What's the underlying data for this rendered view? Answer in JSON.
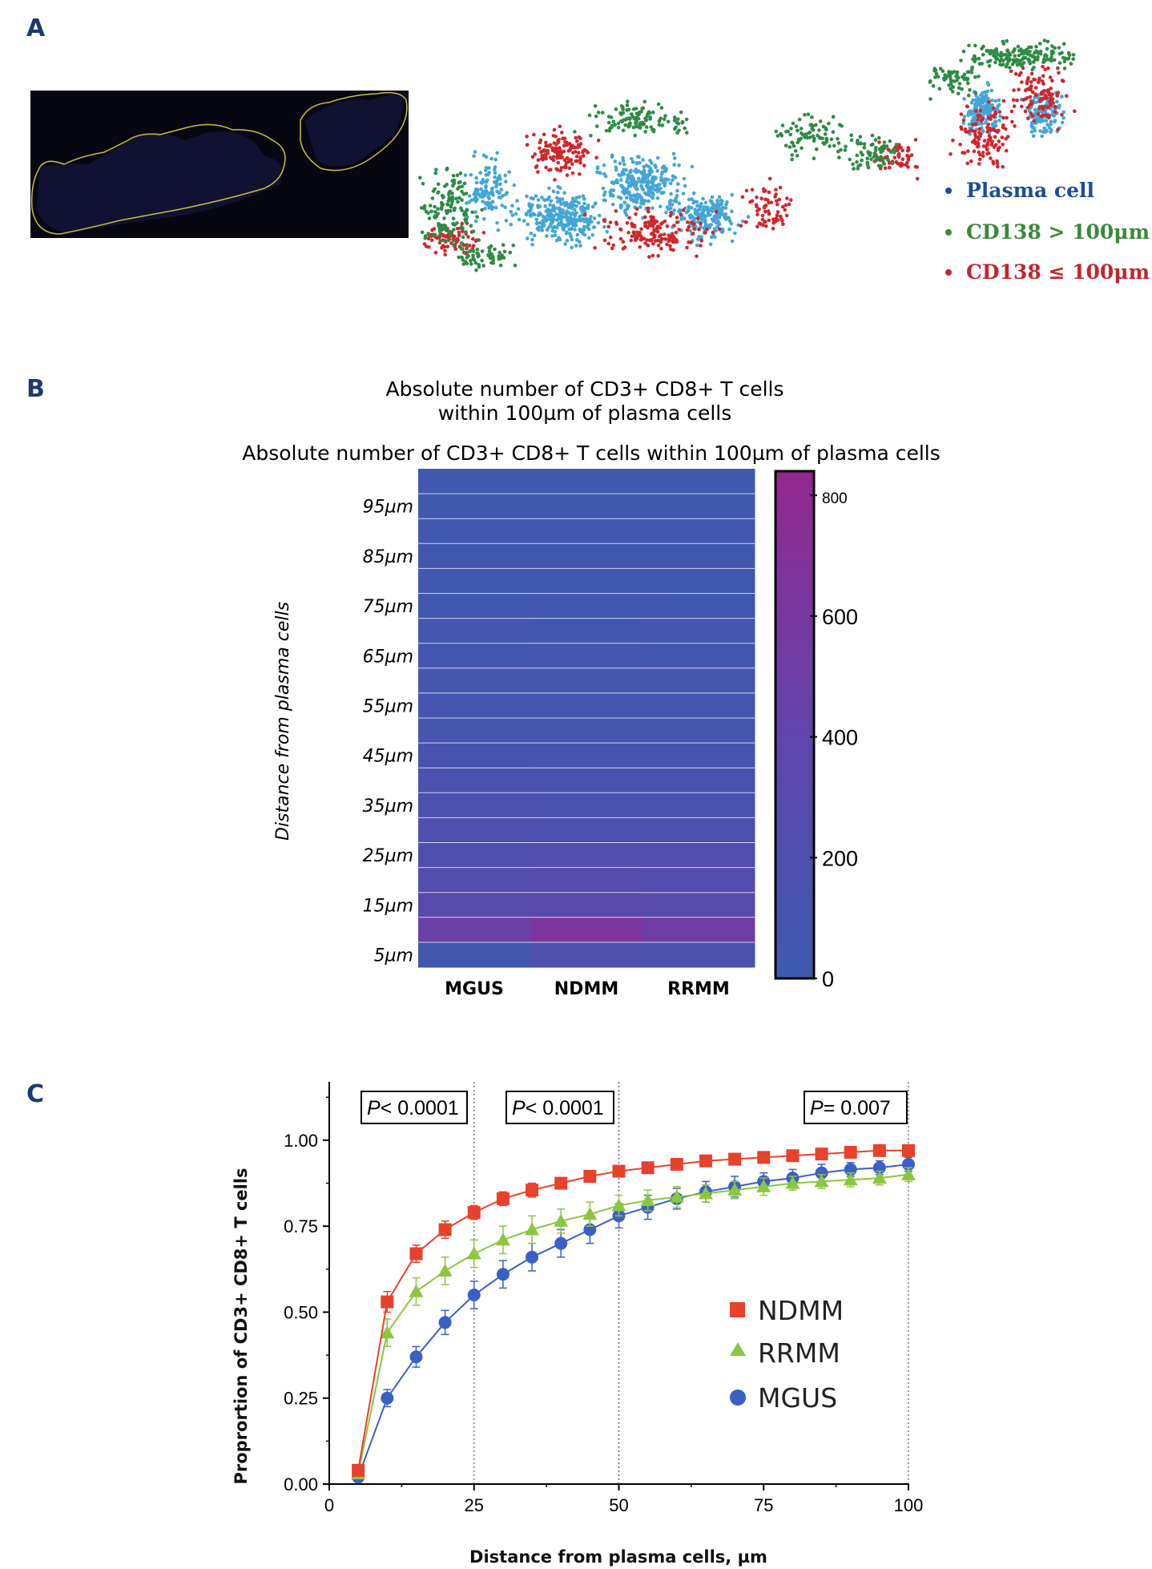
{
  "panels": {
    "a": "A",
    "b": "B",
    "c": "C"
  },
  "panel_a": {
    "legend": [
      {
        "label": "Plasma cell",
        "color": "#1e4d96"
      },
      {
        "label": "CD138 > 100μm",
        "color": "#3a8a3a"
      },
      {
        "label": "CD138 ≤ 100μm",
        "color": "#c0272d"
      }
    ],
    "dot_colors": {
      "plasma": "#43a6d6",
      "far": "#2e8b45",
      "near": "#d0272d"
    }
  },
  "chart_data": [
    {
      "type": "heatmap",
      "title_line1": "Absolute number of CD3+ CD8+ T cells",
      "title_line2": "within 100µm of plasma cells",
      "subtitle": "Absolute number of CD3+ CD8+ T cells within 100µm of plasma cells",
      "ylabel": "Distance from plasma cells",
      "columns": [
        "MGUS",
        "NDMM",
        "RRMM"
      ],
      "row_labels_shown": [
        "95µm",
        "85µm",
        "75µm",
        "65µm",
        "55µm",
        "45µm",
        "35µm",
        "25µm",
        "15µm",
        "5µm"
      ],
      "rows": [
        "100µm",
        "95µm",
        "90µm",
        "85µm",
        "80µm",
        "75µm",
        "70µm",
        "65µm",
        "60µm",
        "55µm",
        "50µm",
        "45µm",
        "40µm",
        "35µm",
        "30µm",
        "25µm",
        "20µm",
        "15µm",
        "10µm",
        "5µm"
      ],
      "values": [
        [
          40,
          40,
          40
        ],
        [
          40,
          40,
          40
        ],
        [
          45,
          45,
          45
        ],
        [
          50,
          50,
          50
        ],
        [
          55,
          60,
          55
        ],
        [
          60,
          65,
          60
        ],
        [
          65,
          70,
          65
        ],
        [
          70,
          75,
          70
        ],
        [
          80,
          85,
          80
        ],
        [
          90,
          95,
          90
        ],
        [
          100,
          105,
          100
        ],
        [
          130,
          120,
          120
        ],
        [
          150,
          140,
          140
        ],
        [
          170,
          150,
          160
        ],
        [
          200,
          180,
          190
        ],
        [
          220,
          230,
          220
        ],
        [
          250,
          270,
          260
        ],
        [
          300,
          320,
          310
        ],
        [
          480,
          640,
          520
        ],
        [
          60,
          180,
          140
        ]
      ],
      "colorbar": {
        "min": 0,
        "max": 840,
        "ticks": [
          0,
          200,
          400,
          600,
          800
        ]
      }
    },
    {
      "type": "line",
      "xlabel": "Distance from plasma cells, µm",
      "ylabel": "Proprortion of CD3+ CD8+ T cells",
      "xlim": [
        0,
        100
      ],
      "ylim": [
        0,
        1.17
      ],
      "xticks": [
        0,
        25,
        50,
        75,
        100
      ],
      "yticks": [
        0,
        0.25,
        0.5,
        0.75,
        1.0
      ],
      "ytick_labels": [
        "0.00",
        "0.25",
        "0.50",
        "0.75",
        "1.00"
      ],
      "x": [
        5,
        10,
        15,
        20,
        25,
        30,
        35,
        40,
        45,
        50,
        55,
        60,
        65,
        70,
        75,
        80,
        85,
        90,
        95,
        100
      ],
      "series": [
        {
          "name": "NDMM",
          "color": "#e8412c",
          "marker": "square",
          "values": [
            0.04,
            0.53,
            0.67,
            0.74,
            0.79,
            0.83,
            0.855,
            0.875,
            0.895,
            0.91,
            0.92,
            0.93,
            0.94,
            0.945,
            0.95,
            0.955,
            0.96,
            0.965,
            0.97,
            0.97
          ],
          "errors": [
            0.01,
            0.03,
            0.025,
            0.025,
            0.02,
            0.02,
            0.02,
            0.015,
            0.015,
            0.015,
            0.015,
            0.012,
            0.012,
            0.012,
            0.01,
            0.01,
            0.01,
            0.01,
            0.01,
            0.01
          ]
        },
        {
          "name": "RRMM",
          "color": "#8cc63f",
          "marker": "triangle",
          "values": [
            0.03,
            0.44,
            0.56,
            0.62,
            0.67,
            0.71,
            0.74,
            0.765,
            0.785,
            0.81,
            0.825,
            0.835,
            0.845,
            0.855,
            0.865,
            0.875,
            0.88,
            0.885,
            0.89,
            0.9
          ],
          "errors": [
            0.01,
            0.04,
            0.04,
            0.04,
            0.04,
            0.04,
            0.04,
            0.035,
            0.035,
            0.03,
            0.03,
            0.03,
            0.025,
            0.025,
            0.025,
            0.02,
            0.02,
            0.02,
            0.02,
            0.02
          ]
        },
        {
          "name": "MGUS",
          "color": "#3b5fc4",
          "marker": "circle",
          "values": [
            0.02,
            0.25,
            0.37,
            0.47,
            0.55,
            0.61,
            0.66,
            0.7,
            0.74,
            0.78,
            0.805,
            0.83,
            0.85,
            0.865,
            0.88,
            0.89,
            0.905,
            0.915,
            0.92,
            0.93
          ],
          "errors": [
            0.01,
            0.025,
            0.03,
            0.035,
            0.04,
            0.04,
            0.04,
            0.04,
            0.04,
            0.035,
            0.035,
            0.03,
            0.03,
            0.03,
            0.025,
            0.025,
            0.025,
            0.02,
            0.02,
            0.02
          ]
        }
      ],
      "annotations": [
        {
          "p_label": "P",
          "text": "< 0.0001"
        },
        {
          "p_label": "P",
          "text": "< 0.0001"
        },
        {
          "p_label": "P",
          "text": "= 0.007"
        }
      ],
      "vlines": [
        25,
        50,
        100
      ]
    }
  ]
}
